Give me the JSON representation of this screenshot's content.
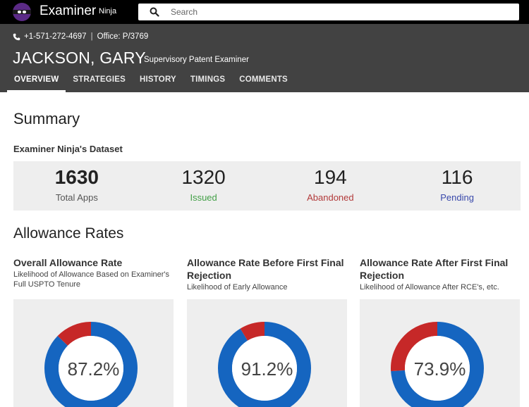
{
  "app": {
    "logo_main": "Examiner",
    "logo_sub": "Ninja"
  },
  "search": {
    "placeholder": "Search",
    "value": ""
  },
  "examiner": {
    "phone": "+1-571-272-4697",
    "office": "Office: P/3769",
    "name": "JACKSON, GARY",
    "title": "Supervisory Patent Examiner"
  },
  "tabs": [
    {
      "label": "OVERVIEW",
      "active": true
    },
    {
      "label": "STRATEGIES",
      "active": false
    },
    {
      "label": "HISTORY",
      "active": false
    },
    {
      "label": "TIMINGS",
      "active": false
    },
    {
      "label": "COMMENTS",
      "active": false
    }
  ],
  "summary": {
    "title": "Summary",
    "dataset_label": "Examiner Ninja's Dataset",
    "stats": [
      {
        "value": "1630",
        "label": "Total Apps",
        "color": "#555555"
      },
      {
        "value": "1320",
        "label": "Issued",
        "color": "#43a047"
      },
      {
        "value": "194",
        "label": "Abandoned",
        "color": "#b23a3a"
      },
      {
        "value": "116",
        "label": "Pending",
        "color": "#3949ab"
      }
    ]
  },
  "allowance": {
    "title": "Allowance Rates",
    "cards": [
      {
        "title": "Overall Allowance Rate",
        "subtitle": "Likelihood of Allowance Based on Examiner's Full USPTO Tenure",
        "rate_label": "87.2%",
        "rate": 0.872
      },
      {
        "title": "Allowance Rate Before First Final Rejection",
        "subtitle": "Likelihood of Early Allowance",
        "rate_label": "91.2%",
        "rate": 0.912
      },
      {
        "title": "Allowance Rate After First Final Rejection",
        "subtitle": "Likelihood of Allowance After RCE's, etc.",
        "rate_label": "73.9%",
        "rate": 0.739
      }
    ]
  },
  "colors": {
    "allowed": "#1565c0",
    "not_allowed": "#c62828",
    "header_bg": "#424242",
    "topbar_bg": "#000000"
  },
  "icons": {
    "search": "search-icon",
    "phone": "phone-icon",
    "logo": "ninja-logo-icon"
  }
}
